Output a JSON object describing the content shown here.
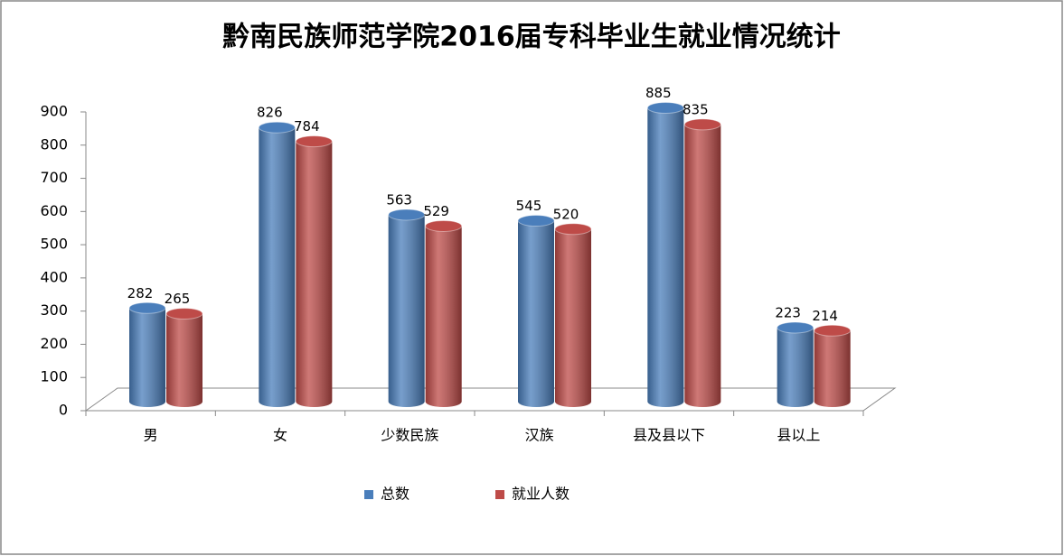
{
  "chart_data": {
    "type": "bar",
    "title": "黔南民族师范学院2016届专科毕业生就业情况统计",
    "categories": [
      "男",
      "女",
      "少数民族",
      "汉族",
      "县及县以下",
      "县以上"
    ],
    "series": [
      {
        "name": "总数",
        "color": "#4a7ebb",
        "values": [
          282,
          826,
          563,
          545,
          885,
          223
        ]
      },
      {
        "name": "就业人数",
        "color": "#be4b48",
        "values": [
          265,
          784,
          529,
          520,
          835,
          214
        ]
      }
    ],
    "ylim": [
      0,
      900
    ],
    "yticks": [
      0,
      100,
      200,
      300,
      400,
      500,
      600,
      700,
      800,
      900
    ],
    "grid": false,
    "legend": "bottom"
  }
}
